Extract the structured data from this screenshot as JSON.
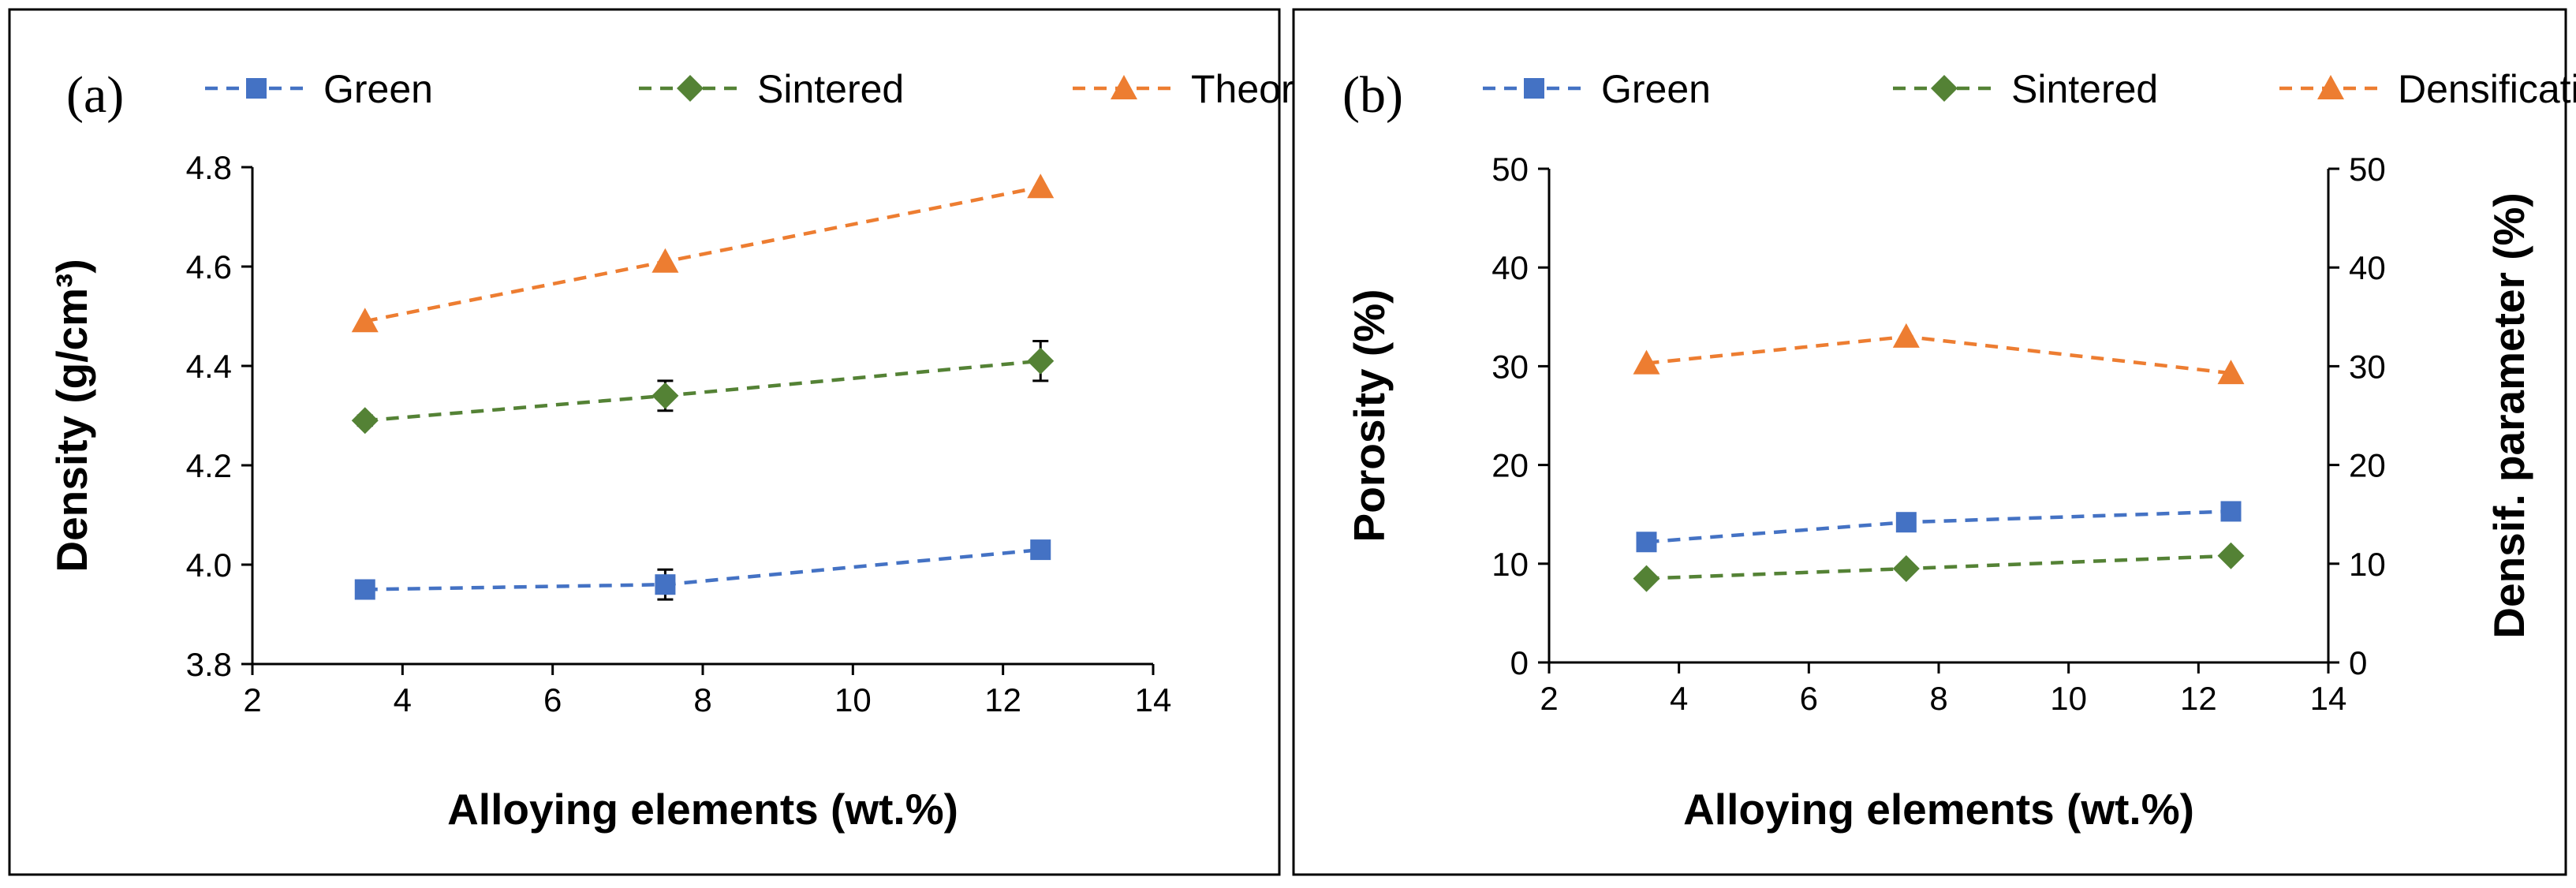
{
  "colors": {
    "green": "#4472C4",
    "sintered": "#548235",
    "theoretical": "#ED7D31"
  },
  "chart_data": [
    {
      "type": "line",
      "panel_label": "(a)",
      "xlabel": "Alloying elements (wt.%)",
      "ylabel": "Density (g/cm³)",
      "xlim": [
        2,
        14
      ],
      "ylim": [
        3.8,
        4.8
      ],
      "x_ticks": [
        2,
        4,
        6,
        8,
        10,
        12,
        14
      ],
      "x_tick_labels": [
        "2",
        "4",
        "6",
        "8",
        "10",
        "12",
        "14"
      ],
      "y_ticks": [
        3.8,
        4.0,
        4.2,
        4.4,
        4.6,
        4.8
      ],
      "y_tick_labels": [
        "3.8",
        "4.0",
        "4.2",
        "4.4",
        "4.6",
        "4.8"
      ],
      "x": [
        3.5,
        7.5,
        12.5
      ],
      "series": [
        {
          "name": "Green",
          "color": "#4472C4",
          "marker": "square",
          "values": [
            3.95,
            3.96,
            4.03
          ],
          "errors": [
            0,
            0.03,
            0
          ]
        },
        {
          "name": "Sintered",
          "color": "#548235",
          "marker": "diamond",
          "values": [
            4.29,
            4.34,
            4.41
          ],
          "errors": [
            0.01,
            0.03,
            0.04
          ]
        },
        {
          "name": "Theoretical",
          "color": "#ED7D31",
          "marker": "triangle",
          "values": [
            4.49,
            4.61,
            4.76
          ],
          "errors": [
            0,
            0,
            0
          ]
        }
      ],
      "legend": [
        "Green",
        "Sintered",
        "Theoretical"
      ],
      "legend_position": "top"
    },
    {
      "type": "line",
      "panel_label": "(b)",
      "xlabel": "Alloying elements (wt.%)",
      "ylabel": "Porosity (%)",
      "y2label": "Densif. parameter (%)",
      "xlim": [
        2,
        14
      ],
      "ylim": [
        0,
        50
      ],
      "y2lim": [
        0,
        50
      ],
      "x_ticks": [
        2,
        4,
        6,
        8,
        10,
        12,
        14
      ],
      "x_tick_labels": [
        "2",
        "4",
        "6",
        "8",
        "10",
        "12",
        "14"
      ],
      "y_ticks": [
        0,
        10,
        20,
        30,
        40,
        50
      ],
      "y_tick_labels": [
        "0",
        "10",
        "20",
        "30",
        "40",
        "50"
      ],
      "y2_tick_labels": [
        "0",
        "10",
        "20",
        "30",
        "40",
        "50"
      ],
      "x": [
        3.5,
        7.5,
        12.5
      ],
      "series": [
        {
          "name": "Green",
          "color": "#4472C4",
          "marker": "square",
          "axis": "left",
          "values": [
            12.2,
            14.2,
            15.3
          ]
        },
        {
          "name": "Sintered",
          "color": "#548235",
          "marker": "diamond",
          "axis": "left",
          "values": [
            8.5,
            9.5,
            10.8
          ]
        },
        {
          "name": "Densification",
          "color": "#ED7D31",
          "marker": "triangle",
          "axis": "right",
          "values": [
            30.3,
            33.0,
            29.3
          ]
        }
      ],
      "legend": [
        "Green",
        "Sintered",
        "Densification"
      ],
      "legend_position": "top"
    }
  ]
}
